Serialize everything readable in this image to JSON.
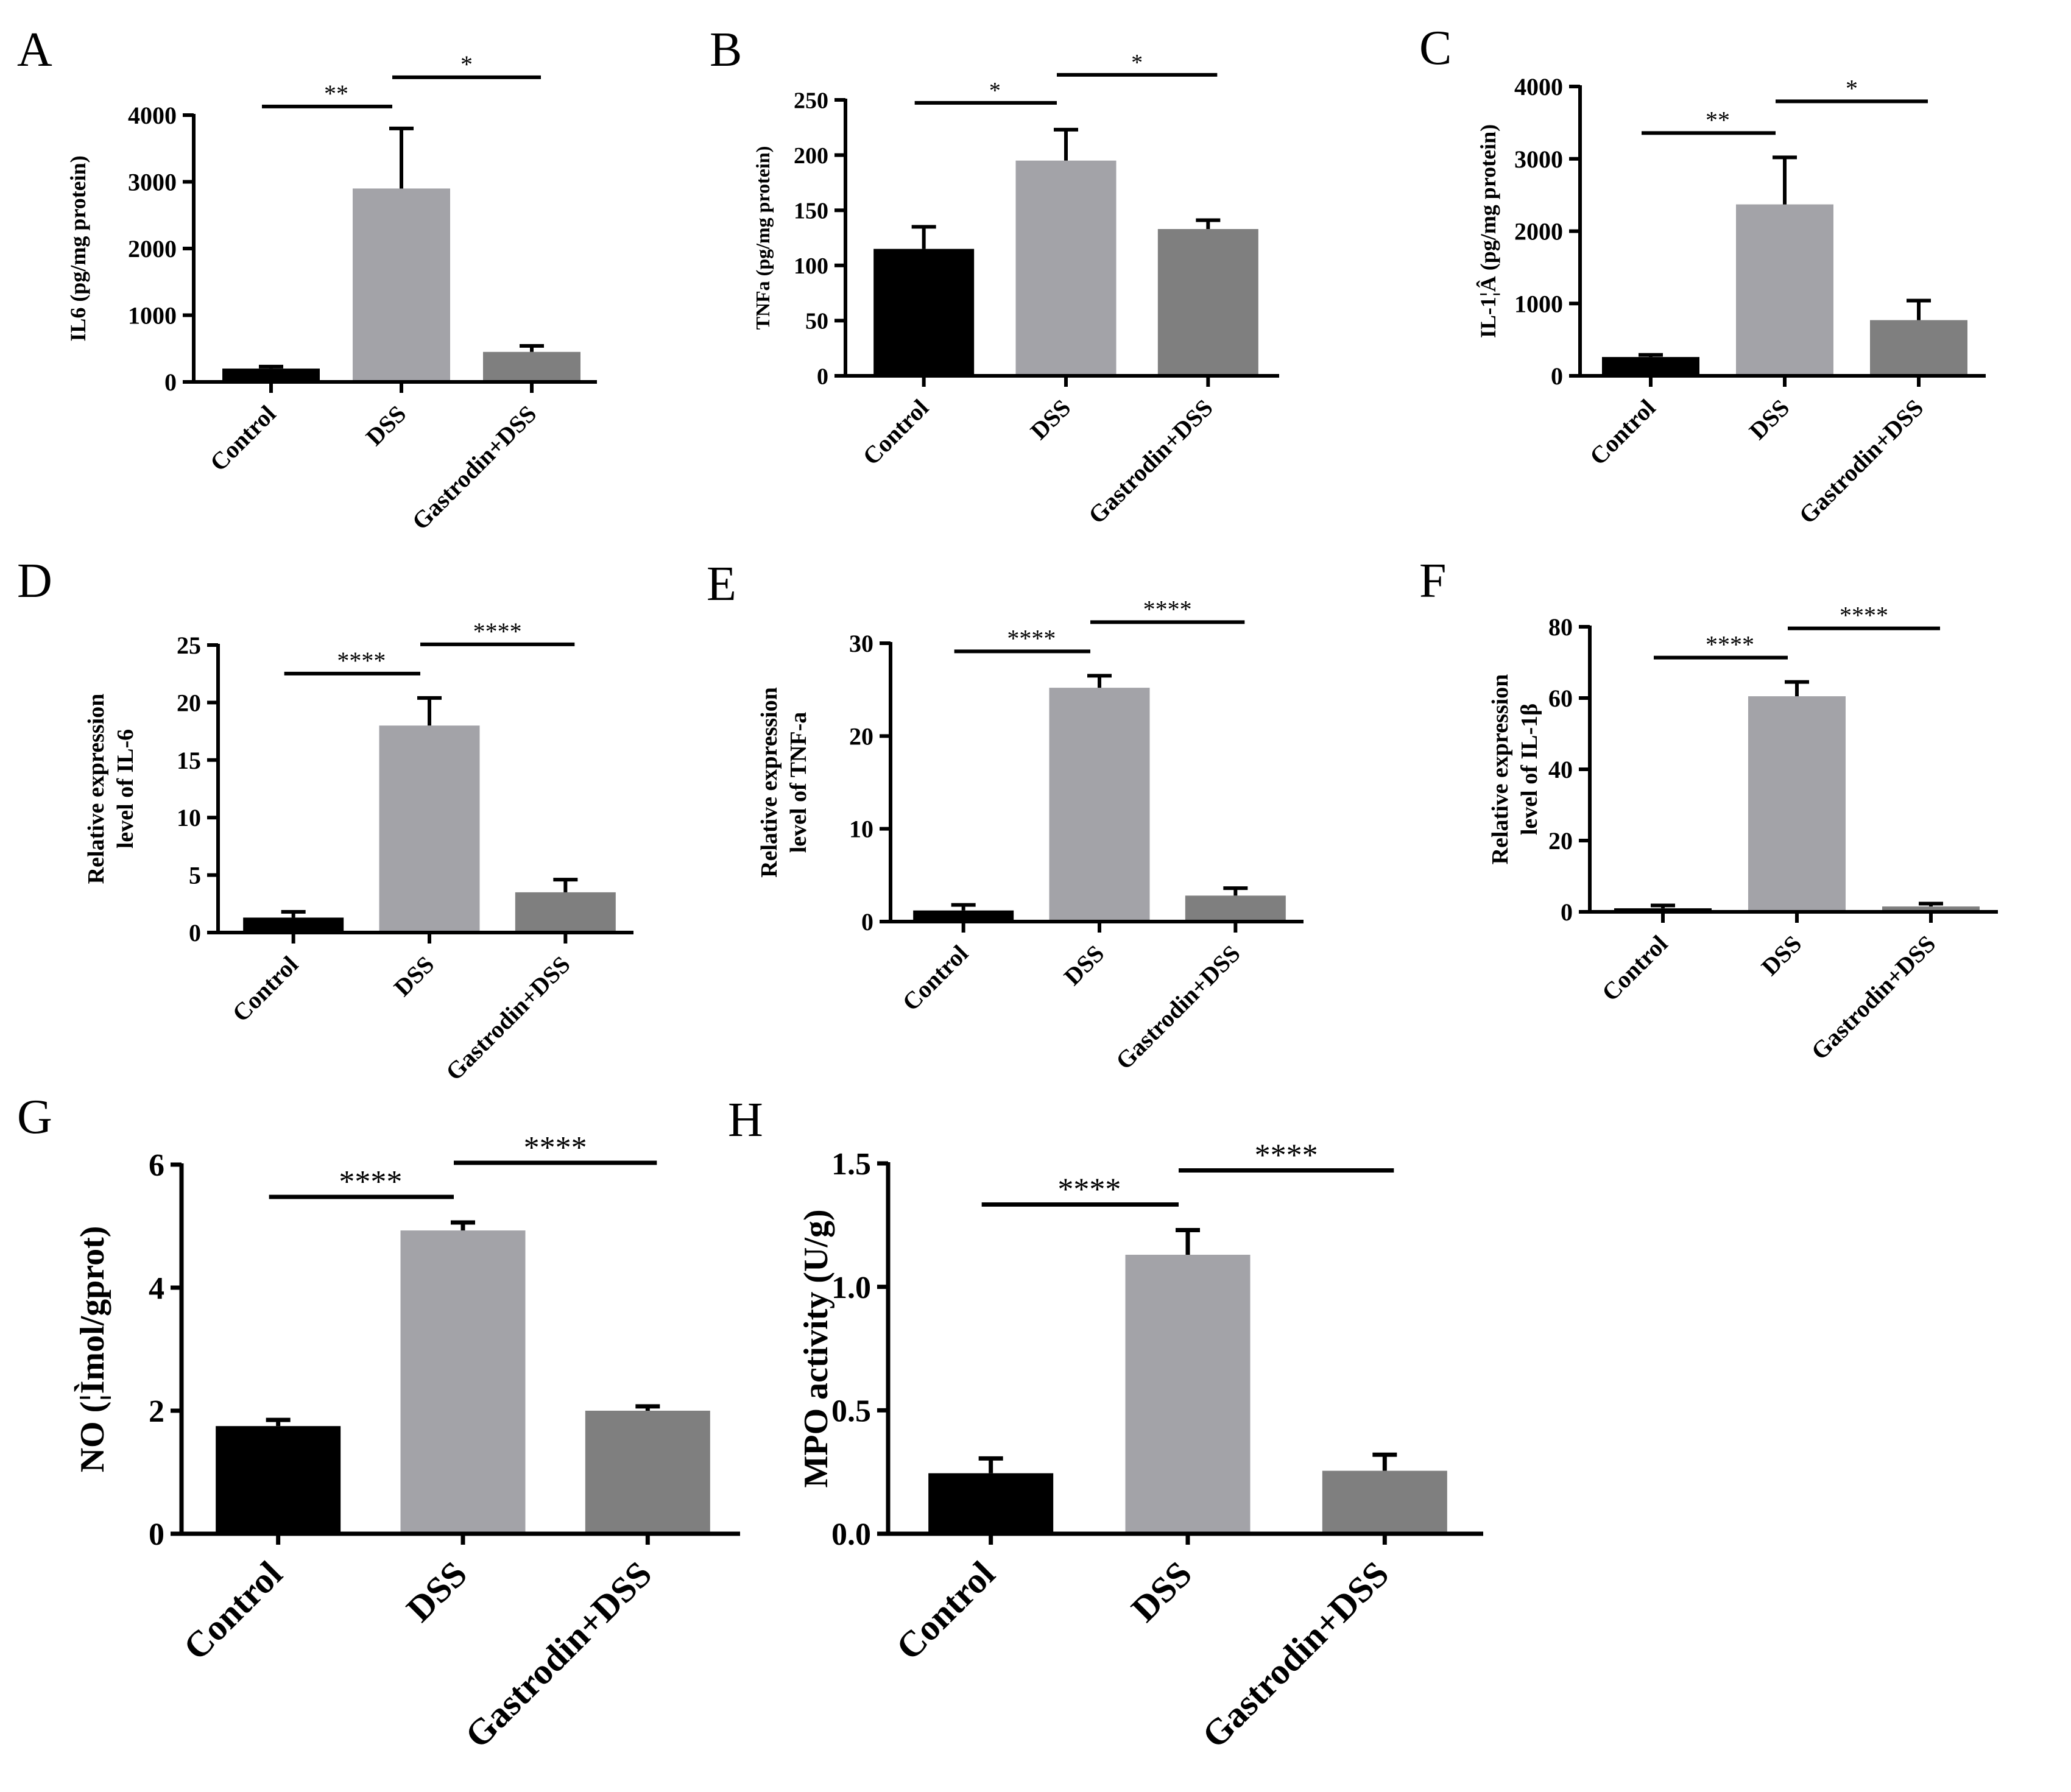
{
  "chart_data": [
    {
      "panel": "A",
      "type": "bar",
      "categories": [
        "Control",
        "DSS",
        "Gastrodin+DSS"
      ],
      "values": [
        200,
        2900,
        450
      ],
      "errors": [
        30,
        900,
        90
      ],
      "colors": [
        "#000000",
        "#a3a3a8",
        "#7f7f7f"
      ],
      "ylabel": "IL6 (pg/mg protein)",
      "ylim": [
        0,
        4000
      ],
      "yticks": [
        "0",
        "1000",
        "2000",
        "3000",
        "4000"
      ],
      "significance": [
        {
          "from": 0,
          "to": 1,
          "label": "**"
        },
        {
          "from": 1,
          "to": 2,
          "label": "*"
        }
      ]
    },
    {
      "panel": "B",
      "type": "bar",
      "categories": [
        "Control",
        "DSS",
        "Gastrodin+DSS"
      ],
      "values": [
        115,
        195,
        133
      ],
      "errors": [
        20,
        28,
        8
      ],
      "colors": [
        "#000000",
        "#a3a3a8",
        "#7f7f7f"
      ],
      "ylabel": "TNFa (pg/mg protein)",
      "ylim": [
        0,
        250
      ],
      "yticks": [
        "0",
        "50",
        "100",
        "150",
        "200",
        "250"
      ],
      "significance": [
        {
          "from": 0,
          "to": 1,
          "label": "*"
        },
        {
          "from": 1,
          "to": 2,
          "label": "*"
        }
      ]
    },
    {
      "panel": "C",
      "type": "bar",
      "categories": [
        "Control",
        "DSS",
        "Gastrodin+DSS"
      ],
      "values": [
        260,
        2370,
        770
      ],
      "errors": [
        30,
        650,
        270
      ],
      "colors": [
        "#000000",
        "#a3a3a8",
        "#7f7f7f"
      ],
      "ylabel": "IL-1¦Â (pg/mg protein)",
      "ylim": [
        0,
        4000
      ],
      "yticks": [
        "0",
        "1000",
        "2000",
        "3000",
        "4000"
      ],
      "significance": [
        {
          "from": 0,
          "to": 1,
          "label": "**"
        },
        {
          "from": 1,
          "to": 2,
          "label": "*"
        }
      ]
    },
    {
      "panel": "D",
      "type": "bar",
      "categories": [
        "Control",
        "DSS",
        "Gastrodin+DSS"
      ],
      "values": [
        1.3,
        18.0,
        3.5
      ],
      "errors": [
        0.5,
        2.4,
        1.1
      ],
      "colors": [
        "#000000",
        "#a3a3a8",
        "#7f7f7f"
      ],
      "ylabel": [
        "Relative expression",
        "level of IL-6"
      ],
      "ylim": [
        0,
        25
      ],
      "yticks": [
        "0",
        "5",
        "10",
        "15",
        "20",
        "25"
      ],
      "significance": [
        {
          "from": 0,
          "to": 1,
          "label": "****"
        },
        {
          "from": 1,
          "to": 2,
          "label": "****"
        }
      ]
    },
    {
      "panel": "E",
      "type": "bar",
      "categories": [
        "Control",
        "DSS",
        "Gastrodin+DSS"
      ],
      "values": [
        1.2,
        25.2,
        2.8
      ],
      "errors": [
        0.6,
        1.3,
        0.8
      ],
      "colors": [
        "#000000",
        "#a3a3a8",
        "#7f7f7f"
      ],
      "ylabel": [
        "Relative expression",
        "level of TNF-a"
      ],
      "ylim": [
        0,
        30
      ],
      "yticks": [
        "0",
        "10",
        "20",
        "30"
      ],
      "significance": [
        {
          "from": 0,
          "to": 1,
          "label": "****"
        },
        {
          "from": 1,
          "to": 2,
          "label": "****"
        }
      ]
    },
    {
      "panel": "F",
      "type": "bar",
      "categories": [
        "Control",
        "DSS",
        "Gastrodin+DSS"
      ],
      "values": [
        1.0,
        60.5,
        1.5
      ],
      "errors": [
        0.8,
        4.0,
        0.8
      ],
      "colors": [
        "#000000",
        "#a3a3a8",
        "#7f7f7f"
      ],
      "ylabel": [
        "Relative expression",
        "level of IL-1β"
      ],
      "ylim": [
        0,
        80
      ],
      "yticks": [
        "0",
        "20",
        "40",
        "60",
        "80"
      ],
      "significance": [
        {
          "from": 0,
          "to": 1,
          "label": "****"
        },
        {
          "from": 1,
          "to": 2,
          "label": "****"
        }
      ]
    },
    {
      "panel": "G",
      "type": "bar",
      "categories": [
        "Control",
        "DSS",
        "Gastrodin+DSS"
      ],
      "values": [
        1.75,
        4.93,
        2.0
      ],
      "errors": [
        0.1,
        0.13,
        0.07
      ],
      "colors": [
        "#000000",
        "#a3a3a8",
        "#7f7f7f"
      ],
      "ylabel": "NO (¦Ìmol/gprot)",
      "ylim": [
        0,
        6
      ],
      "yticks": [
        "0",
        "2",
        "4",
        "6"
      ],
      "significance": [
        {
          "from": 0,
          "to": 1,
          "label": "****"
        },
        {
          "from": 1,
          "to": 2,
          "label": "****"
        }
      ]
    },
    {
      "panel": "H",
      "type": "bar",
      "categories": [
        "Control",
        "DSS",
        "Gastrodin+DSS"
      ],
      "values": [
        0.245,
        1.13,
        0.255
      ],
      "errors": [
        0.06,
        0.1,
        0.065
      ],
      "colors": [
        "#000000",
        "#a3a3a8",
        "#7f7f7f"
      ],
      "ylabel": "MPO activity (U/g)",
      "ylim": [
        0,
        1.5
      ],
      "yticks": [
        "0.0",
        "0.5",
        "1.0",
        "1.5"
      ],
      "significance": [
        {
          "from": 0,
          "to": 1,
          "label": "****"
        },
        {
          "from": 1,
          "to": 2,
          "label": "****"
        }
      ]
    }
  ]
}
